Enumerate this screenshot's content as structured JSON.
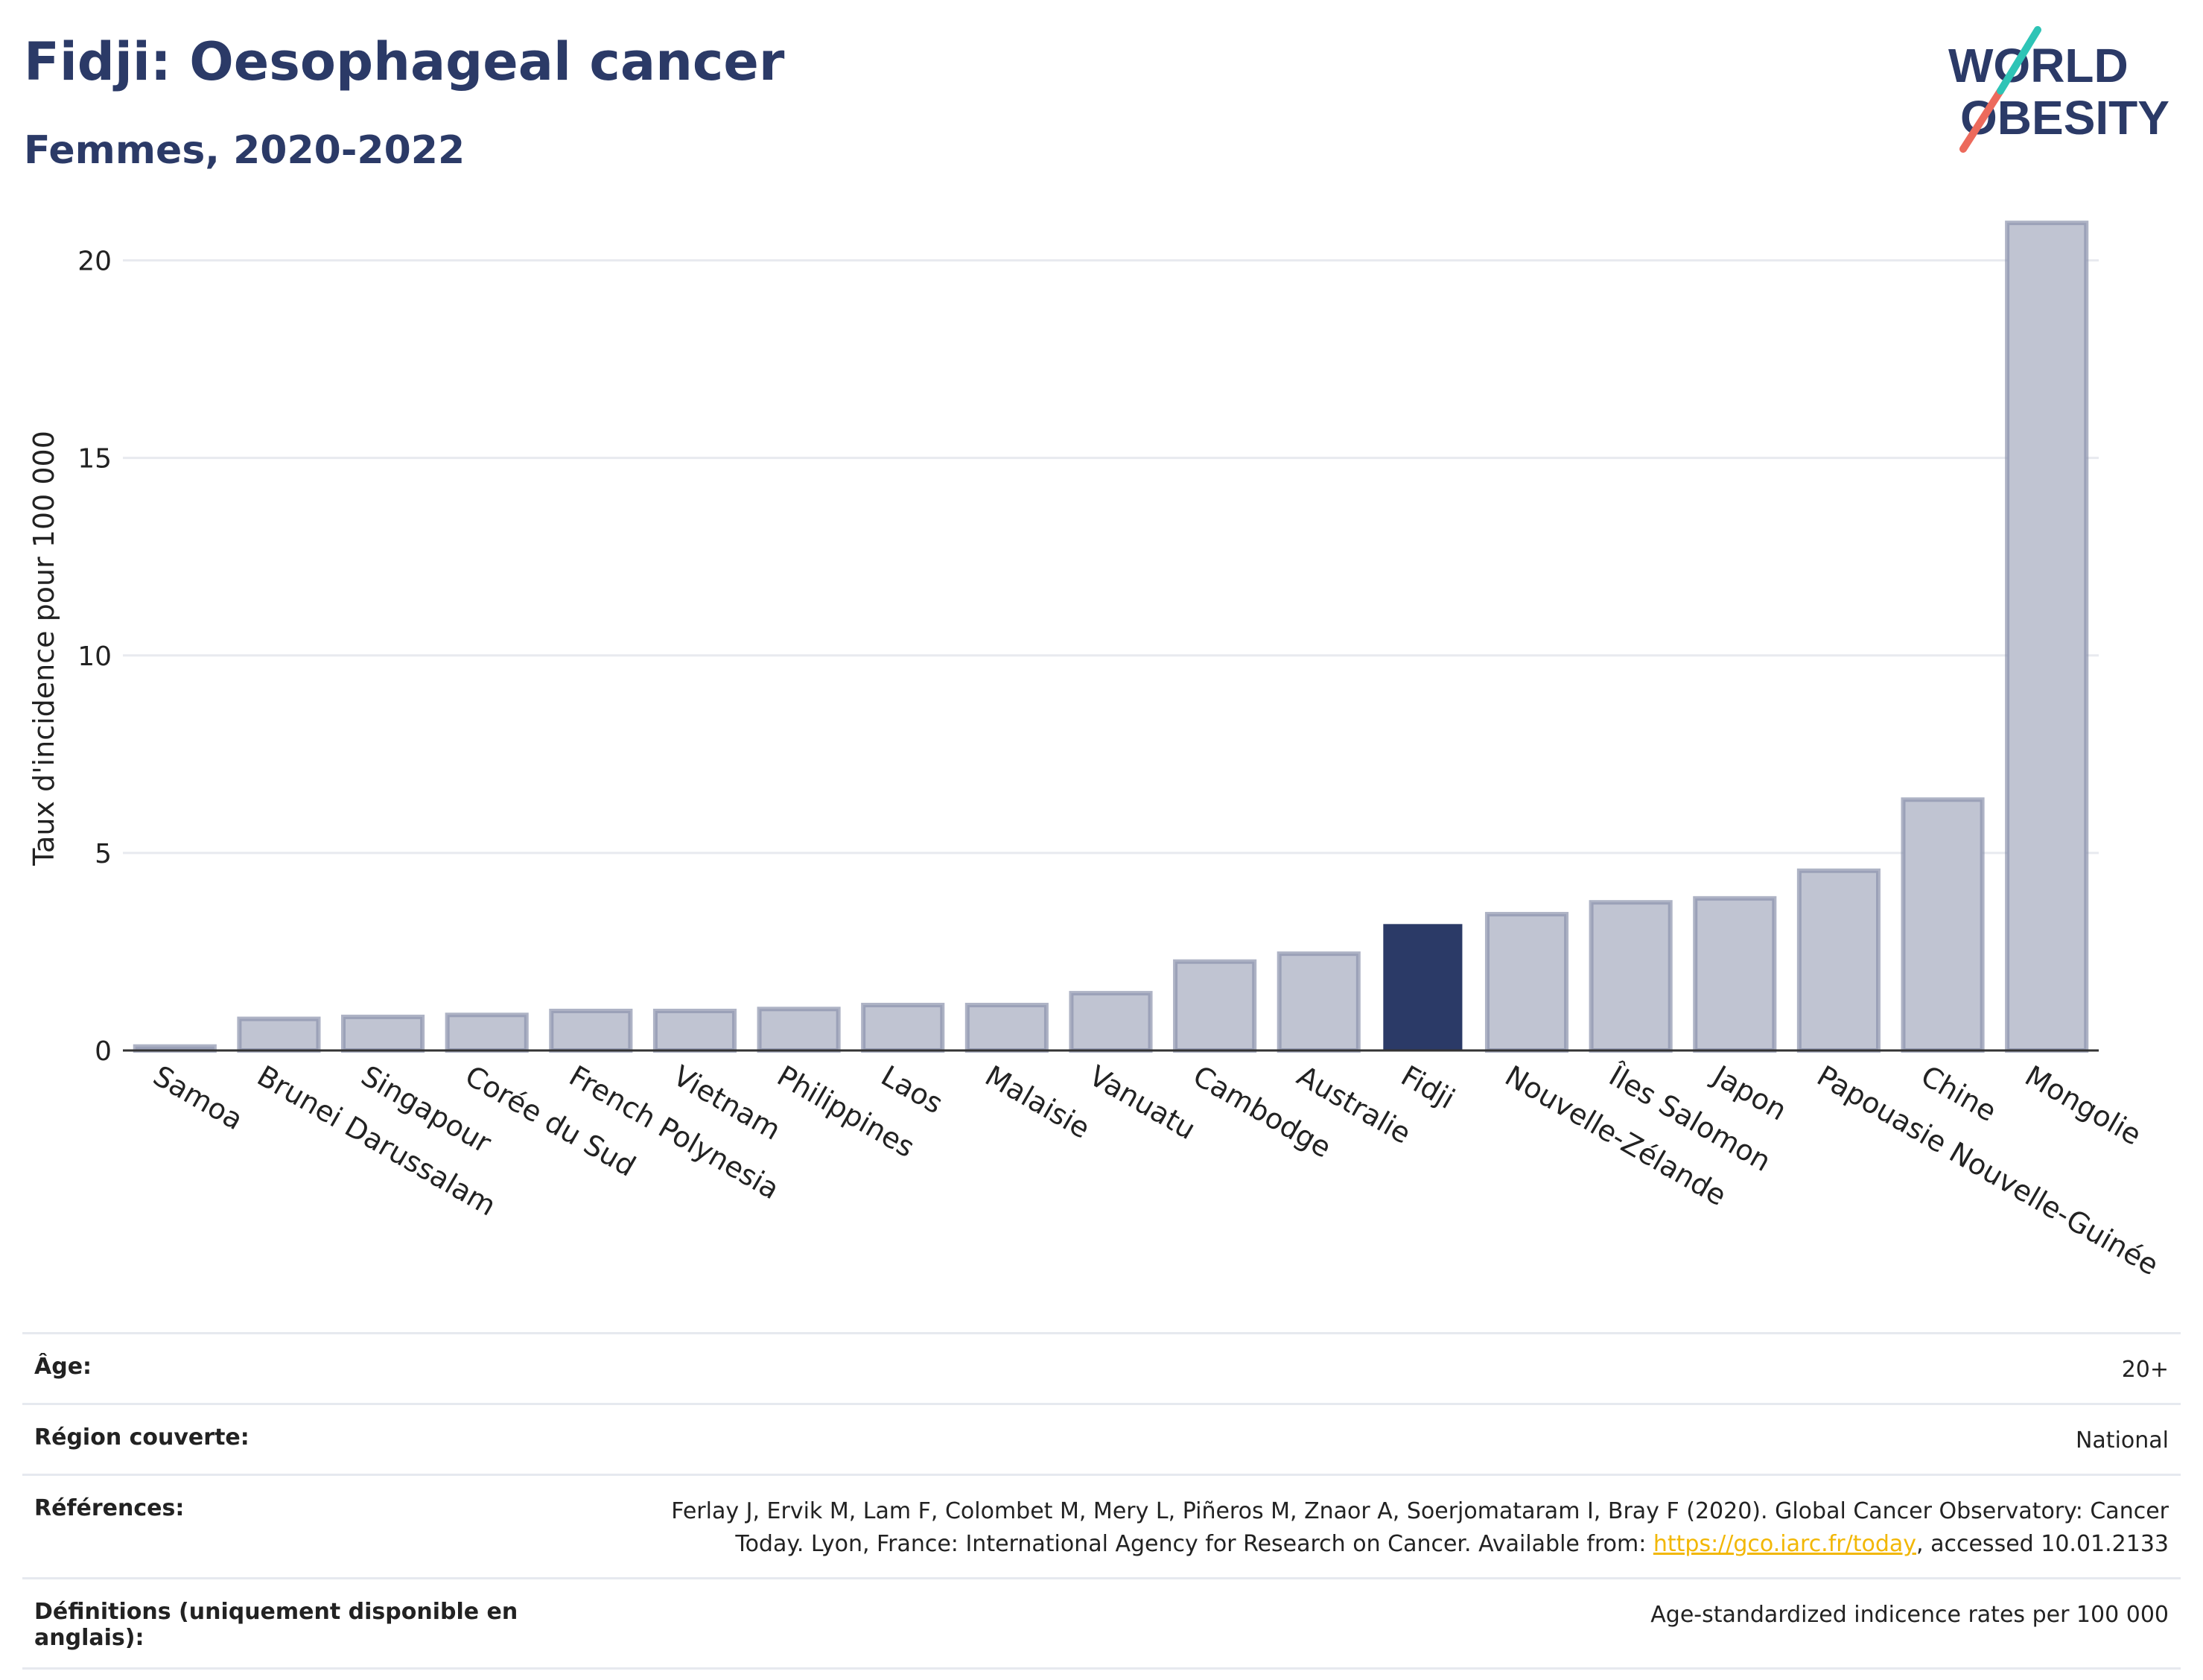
{
  "title": "Fidji: Oesophageal cancer",
  "subtitle": "Femmes, 2020-2022",
  "logo": {
    "line1": "WORLD",
    "line2": "OBESITY"
  },
  "chart_data": {
    "type": "bar",
    "ylabel": "Taux d'incidence pour 100 000",
    "xlabel": "",
    "ylim": [
      0,
      21.5
    ],
    "yticks": [
      0,
      5,
      10,
      15,
      20
    ],
    "grid": true,
    "highlight": "Fidji",
    "colors": {
      "bar": "#c0c4d2",
      "bar_edge": "#8b93ad",
      "highlight": "#2b3a67",
      "grid": "#e8eaef"
    },
    "categories": [
      "Samoa",
      "Brunei Darussalam",
      "Singapour",
      "Corée du Sud",
      "French Polynesia",
      "Vietnam",
      "Philippines",
      "Laos",
      "Malaisie",
      "Vanuatu",
      "Cambodge",
      "Australie",
      "Fidji",
      "Nouvelle-Zélande",
      "Îles Salomon",
      "Japon",
      "Papouasie Nouvelle-Guinée",
      "Chine",
      "Mongolie"
    ],
    "values": [
      0.1,
      0.8,
      0.85,
      0.9,
      1.0,
      1.0,
      1.05,
      1.15,
      1.15,
      1.45,
      2.25,
      2.45,
      3.2,
      3.45,
      3.75,
      3.85,
      4.55,
      6.35,
      20.95
    ]
  },
  "info": [
    {
      "key": "Âge:",
      "value": "20+"
    },
    {
      "key": "Région couverte:",
      "value": "National"
    },
    {
      "key": "Références:",
      "value_line1": "Ferlay J, Ervik M, Lam F, Colombet M, Mery L, Piñeros M, Znaor A, Soerjomataram I, Bray F (2020). Global Cancer Observatory: Cancer",
      "value_pre": "Today. Lyon, France: International Agency for Research on Cancer. Available from: ",
      "link": "https://gco.iarc.fr/today",
      "value_post": ", accessed 10.01.2133"
    },
    {
      "key": "Définitions (uniquement disponible en anglais):",
      "value": "Age-standardized indicence rates per 100 000"
    }
  ]
}
